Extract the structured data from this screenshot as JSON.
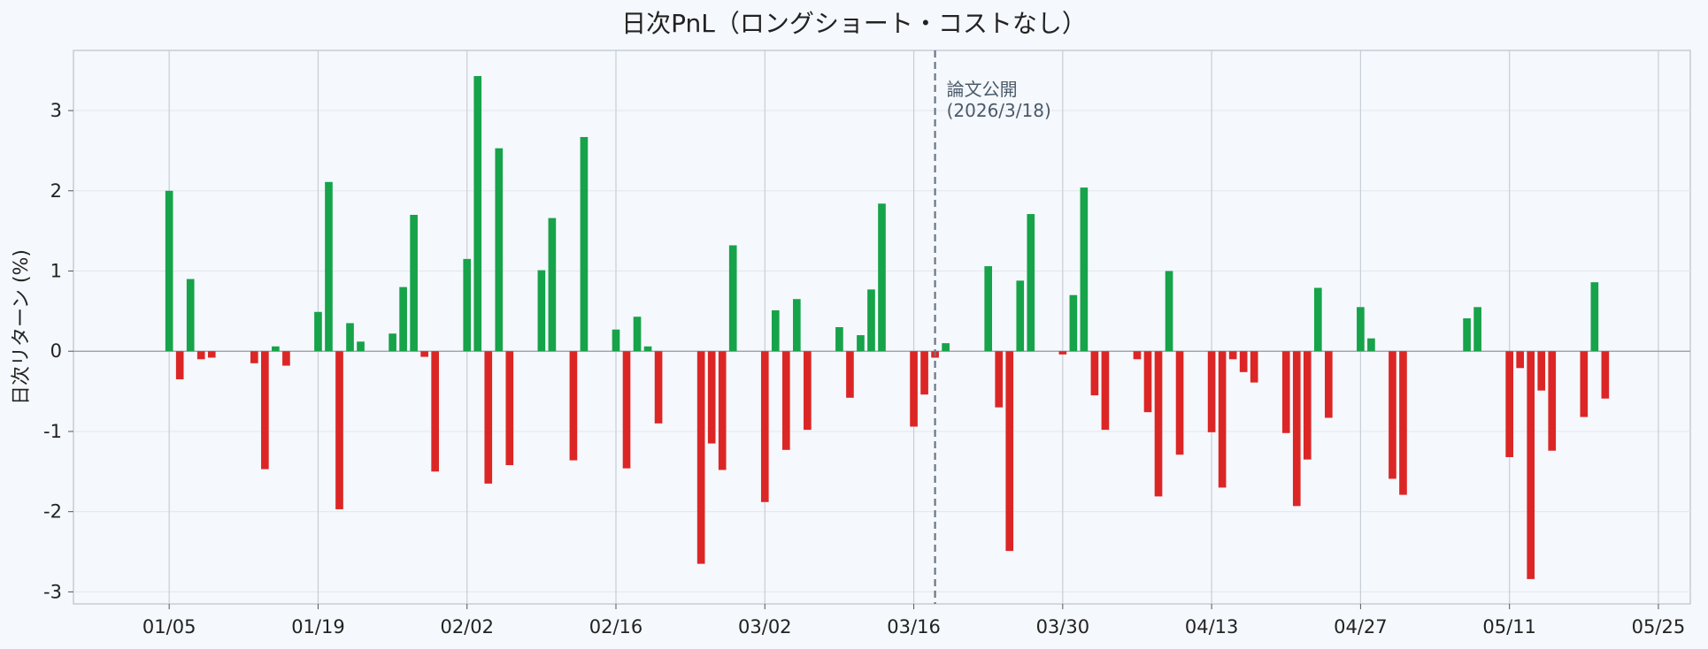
{
  "chart_data": {
    "type": "bar",
    "title": "日次PnL（ロングショート・コストなし）",
    "ylabel": "日次リターン (%)",
    "xlabel": "",
    "ylim": [
      -3.15,
      3.75
    ],
    "yticks": [
      -3,
      -2,
      -1,
      0,
      1,
      2,
      3
    ],
    "ytick_labels": [
      "-3",
      "-2",
      "-1",
      "0",
      "1",
      "2",
      "3"
    ],
    "x_start": "2025-12-27",
    "x_end": "2026-05-28",
    "xticks": [
      "2026-01-05",
      "2026-01-19",
      "2026-02-02",
      "2026-02-16",
      "2026-03-02",
      "2026-03-16",
      "2026-03-30",
      "2026-04-13",
      "2026-04-27",
      "2026-05-11",
      "2026-05-25"
    ],
    "xtick_labels": [
      "01/05",
      "01/19",
      "02/02",
      "02/16",
      "03/02",
      "03/16",
      "03/30",
      "04/13",
      "04/27",
      "05/11",
      "05/25"
    ],
    "grid": true,
    "colors": {
      "positive": "#16a34a",
      "negative": "#dc2626",
      "zero_line": "#999999",
      "grid": "#c8ced6",
      "annotation": "#6b7785"
    },
    "annotation": {
      "date": "2026-03-18",
      "line1": "論文公開",
      "line2": "(2026/3/18)"
    },
    "dates": [
      "2026-01-05",
      "2026-01-06",
      "2026-01-07",
      "2026-01-08",
      "2026-01-09",
      "2026-01-13",
      "2026-01-14",
      "2026-01-15",
      "2026-01-16",
      "2026-01-19",
      "2026-01-20",
      "2026-01-21",
      "2026-01-22",
      "2026-01-23",
      "2026-01-26",
      "2026-01-27",
      "2026-01-28",
      "2026-01-29",
      "2026-01-30",
      "2026-02-02",
      "2026-02-03",
      "2026-02-04",
      "2026-02-05",
      "2026-02-06",
      "2026-02-09",
      "2026-02-10",
      "2026-02-12",
      "2026-02-13",
      "2026-02-16",
      "2026-02-17",
      "2026-02-18",
      "2026-02-19",
      "2026-02-20",
      "2026-02-24",
      "2026-02-25",
      "2026-02-26",
      "2026-02-27",
      "2026-03-02",
      "2026-03-03",
      "2026-03-04",
      "2026-03-05",
      "2026-03-06",
      "2026-03-09",
      "2026-03-10",
      "2026-03-11",
      "2026-03-12",
      "2026-03-13",
      "2026-03-16",
      "2026-03-17",
      "2026-03-18",
      "2026-03-19",
      "2026-03-23",
      "2026-03-24",
      "2026-03-25",
      "2026-03-26",
      "2026-03-27",
      "2026-03-30",
      "2026-03-31",
      "2026-04-01",
      "2026-04-02",
      "2026-04-03",
      "2026-04-06",
      "2026-04-07",
      "2026-04-08",
      "2026-04-09",
      "2026-04-10",
      "2026-04-13",
      "2026-04-14",
      "2026-04-15",
      "2026-04-16",
      "2026-04-17",
      "2026-04-20",
      "2026-04-21",
      "2026-04-22",
      "2026-04-23",
      "2026-04-24",
      "2026-04-27",
      "2026-04-28",
      "2026-04-30",
      "2026-05-01",
      "2026-05-07",
      "2026-05-08",
      "2026-05-11",
      "2026-05-12",
      "2026-05-13",
      "2026-05-14",
      "2026-05-15",
      "2026-05-18",
      "2026-05-19",
      "2026-05-20"
    ],
    "values": [
      2.0,
      -0.35,
      0.9,
      -0.1,
      -0.08,
      -0.15,
      -1.47,
      0.06,
      -0.18,
      0.49,
      2.11,
      -1.97,
      0.35,
      0.12,
      0.22,
      0.8,
      1.7,
      -0.07,
      -1.5,
      1.15,
      3.43,
      -1.65,
      2.53,
      -1.42,
      1.01,
      1.66,
      -1.36,
      2.67,
      0.27,
      -1.46,
      0.43,
      0.06,
      -0.9,
      -2.65,
      -1.15,
      -1.48,
      1.32,
      -1.88,
      0.51,
      -1.23,
      0.65,
      -0.98,
      0.3,
      -0.58,
      0.2,
      0.77,
      1.84,
      -0.94,
      -0.54,
      -0.08,
      0.1,
      1.06,
      -0.7,
      -2.49,
      0.88,
      1.71,
      -0.04,
      0.7,
      2.04,
      -0.55,
      -0.98,
      -0.1,
      -0.76,
      -1.81,
      1.0,
      -1.29,
      -1.01,
      -1.7,
      -0.1,
      -0.26,
      -0.39,
      -1.02,
      -1.93,
      -1.35,
      0.79,
      -0.83,
      0.55,
      0.16,
      -1.59,
      -1.79,
      0.41,
      0.55,
      -1.32,
      -0.21,
      -2.84,
      -0.49,
      -1.24,
      -0.82,
      0.86,
      -0.59
    ]
  }
}
